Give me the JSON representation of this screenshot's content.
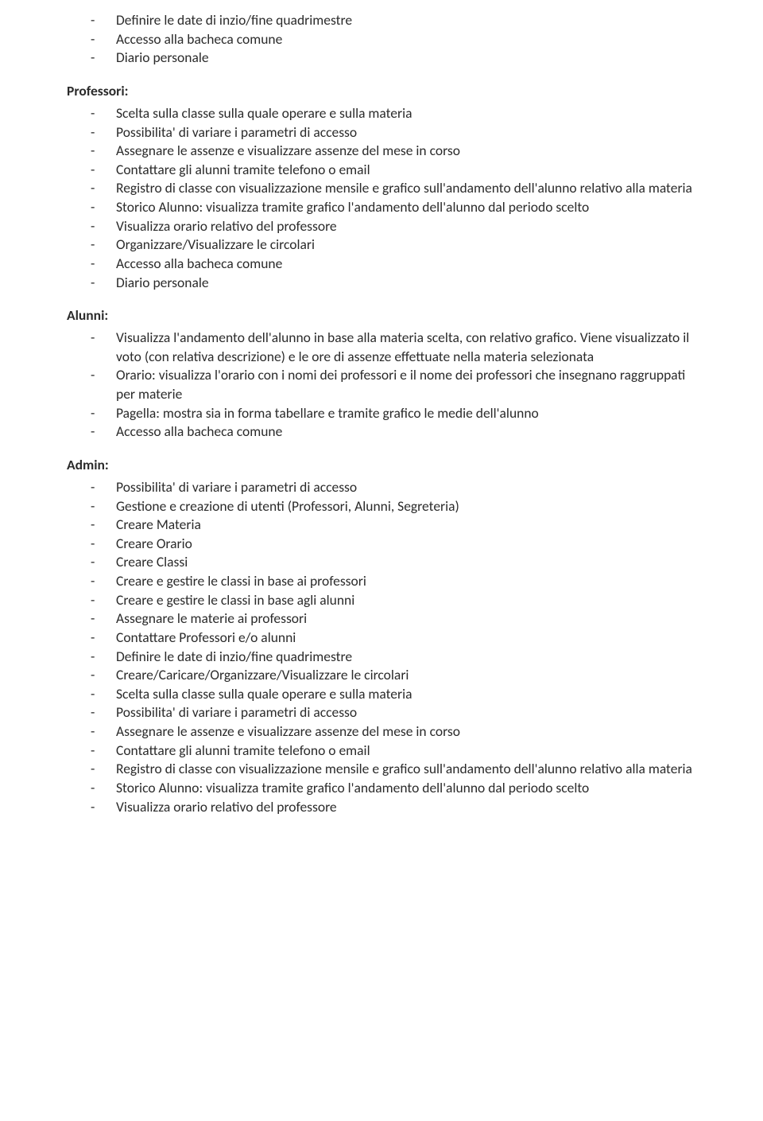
{
  "text_color": "#2b2b2b",
  "background_color": "#ffffff",
  "font_family": "Calibri",
  "base_font_size_pt": 13,
  "sections": {
    "top_list": [
      "Definire le date di inzio/fine quadrimestre",
      "Accesso alla bacheca comune",
      "Diario personale"
    ],
    "professori": {
      "heading": "Professori:",
      "items": [
        "Scelta sulla classe sulla quale operare e sulla materia",
        "Possibilita' di variare i parametri di accesso",
        "Assegnare le assenze e visualizzare assenze del mese in corso",
        "Contattare gli alunni tramite telefono o email",
        "Registro di classe con visualizzazione mensile e grafico sull'andamento dell'alunno relativo alla materia",
        "Storico Alunno: visualizza tramite grafico l'andamento dell'alunno dal periodo scelto",
        "Visualizza orario relativo del professore",
        "Organizzare/Visualizzare le circolari",
        "Accesso alla bacheca comune",
        "Diario personale"
      ]
    },
    "alunni": {
      "heading": "Alunni:",
      "items": [
        "Visualizza l'andamento dell'alunno in base alla materia scelta, con relativo grafico. Viene visualizzato il voto (con relativa descrizione) e le ore di assenze effettuate nella materia selezionata",
        "Orario: visualizza l'orario con i nomi dei professori e il nome dei professori che insegnano raggruppati per materie",
        "Pagella: mostra sia in forma tabellare e tramite grafico le medie dell'alunno",
        "Accesso alla bacheca comune"
      ]
    },
    "admin": {
      "heading": "Admin:",
      "items": [
        "Possibilita' di variare i parametri di accesso",
        "Gestione e creazione di utenti (Professori, Alunni, Segreteria)",
        "Creare Materia",
        "Creare Orario",
        "Creare Classi",
        "Creare e gestire le classi in base ai professori",
        "Creare e gestire le classi in base agli alunni",
        "Assegnare le materie ai professori",
        "Contattare Professori e/o alunni",
        "Definire le date di inzio/fine quadrimestre",
        "Creare/Caricare/Organizzare/Visualizzare le circolari",
        "Scelta sulla classe sulla quale operare e sulla materia",
        "Possibilita' di variare i parametri di accesso",
        "Assegnare le assenze e visualizzare assenze del mese in corso",
        "Contattare gli alunni tramite telefono o email",
        "Registro di classe con visualizzazione mensile e grafico sull'andamento dell'alunno relativo alla materia",
        "Storico Alunno: visualizza tramite grafico l'andamento dell'alunno dal periodo scelto",
        "Visualizza orario relativo del professore"
      ]
    }
  }
}
